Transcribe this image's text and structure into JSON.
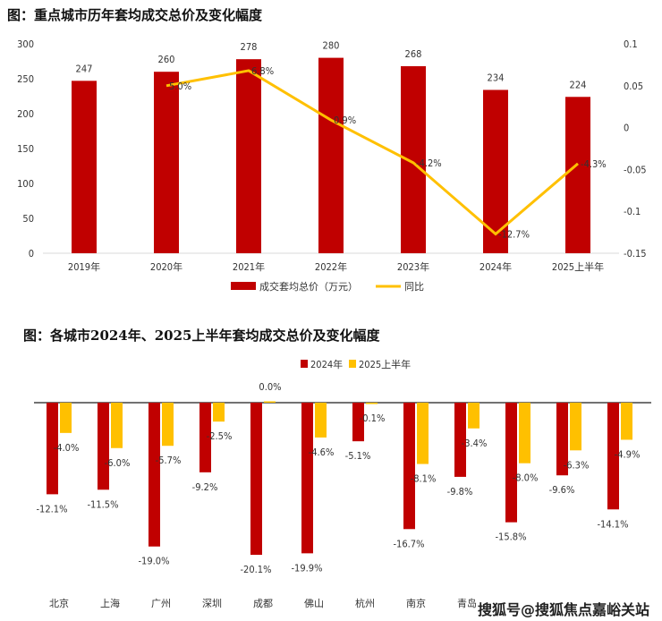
{
  "watermark": "搜狐号@搜狐焦点嘉峪关站",
  "colors": {
    "bar": "#C00000",
    "line": "#FFC000",
    "bar2025": "#FFC000"
  },
  "chart_data": [
    {
      "type": "bar+line",
      "title": "图：重点城市历年套均成交总价及变化幅度",
      "categories": [
        "2019年",
        "2020年",
        "2021年",
        "2022年",
        "2023年",
        "2024年",
        "2025上半年"
      ],
      "series": [
        {
          "name": "成交套均总价（万元）",
          "type": "bar",
          "axis": "left",
          "values": [
            247,
            260,
            278,
            280,
            268,
            234,
            224
          ],
          "labels": [
            "247",
            "260",
            "278",
            "280",
            "268",
            "234",
            "224"
          ]
        },
        {
          "name": "同比",
          "type": "line",
          "axis": "right",
          "values": [
            null,
            0.05,
            0.068,
            0.009,
            -0.042,
            -0.127,
            -0.043
          ],
          "labels": [
            "",
            "5.0%",
            "6.8%",
            "0.9%",
            "-4.2%",
            "-12.7%",
            "-4.3%"
          ]
        }
      ],
      "ylim": [
        0,
        300
      ],
      "yticks": [
        "0",
        "50",
        "100",
        "150",
        "200",
        "250",
        "300"
      ],
      "y2lim": [
        -0.15,
        0.1
      ],
      "y2ticks": [
        "0.1",
        "0.05",
        "0",
        "-0.05",
        "-0.1",
        "-0.15"
      ],
      "legend": "bottom",
      "grid": false
    },
    {
      "type": "bar",
      "title": "图：各城市2024年、2025上半年套均成交总价及变化幅度",
      "categories": [
        "北京",
        "上海",
        "广州",
        "深圳",
        "成都",
        "佛山",
        "杭州",
        "南京",
        "青岛",
        "",
        "",
        ""
      ],
      "series": [
        {
          "name": "2024年",
          "values": [
            -12.1,
            -11.5,
            -19.0,
            -9.2,
            -20.1,
            -19.9,
            -5.1,
            -16.7,
            -9.8,
            -15.8,
            -9.6,
            -14.1
          ]
        },
        {
          "name": "2025上半年",
          "values": [
            -4.0,
            -6.0,
            -5.7,
            -2.5,
            0.0,
            -4.6,
            -0.1,
            -8.1,
            -3.4,
            -8.0,
            -6.3,
            -4.9
          ]
        }
      ],
      "unit": "%",
      "legend": "top",
      "grid": false
    }
  ]
}
